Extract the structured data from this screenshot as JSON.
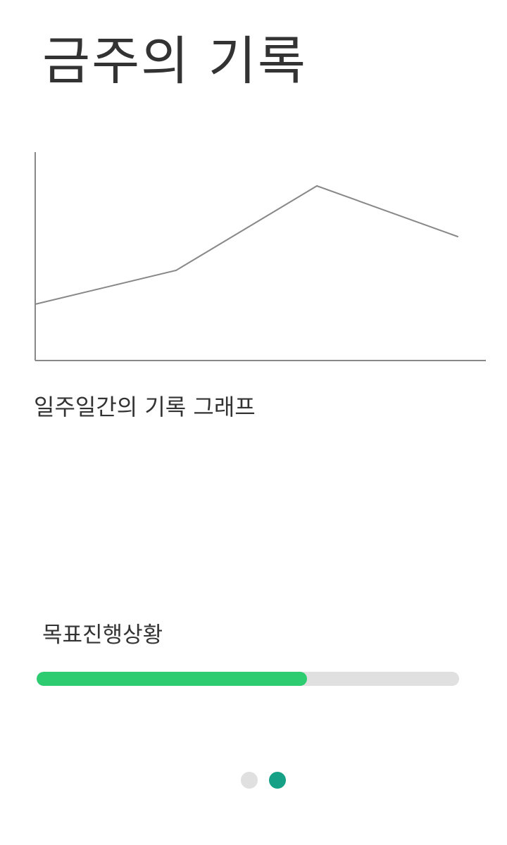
{
  "title": "금주의 기록",
  "chart": {
    "caption": "일주일간의 기록 그래프",
    "line_color": "#888888",
    "axis_color": "#888888"
  },
  "chart_data": {
    "type": "line",
    "title": "",
    "xlabel": "",
    "ylabel": "",
    "x": [
      0,
      1,
      2,
      3
    ],
    "series": [
      {
        "values": [
          1.0,
          1.6,
          3.1,
          2.2
        ]
      }
    ],
    "xlim": [
      0,
      3.2
    ],
    "ylim": [
      0,
      3.7
    ],
    "grid": false
  },
  "goal": {
    "label": "목표진행상황",
    "progress": 0.64,
    "fill_color": "#2ecc71",
    "track_color": "#e0e0e0"
  },
  "pager": {
    "pages": 2,
    "active_index": 1,
    "active_color": "#16a085",
    "inactive_color": "#e0e0e0"
  }
}
